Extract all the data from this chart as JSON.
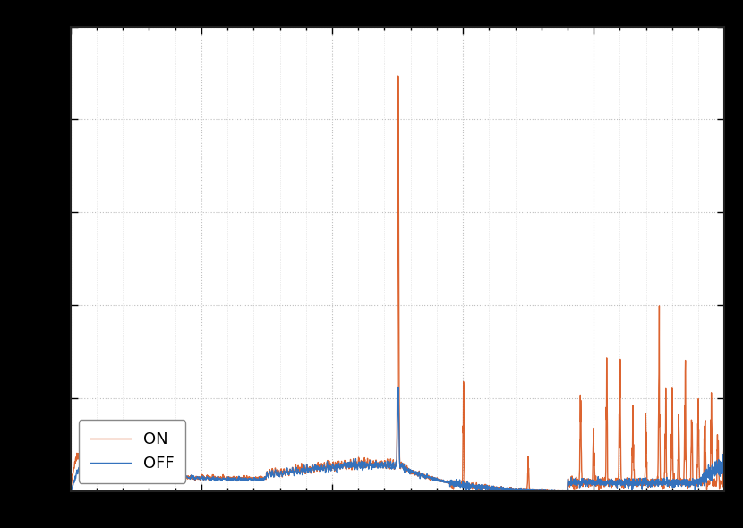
{
  "color_off": "#3472bd",
  "color_on": "#d95319",
  "legend_labels": [
    "OFF",
    "ON"
  ],
  "background_color": "#ffffff",
  "grid_color": "#c0c0c0",
  "fig_facecolor": "#000000",
  "axes_facecolor": "#ffffff",
  "xlim": [
    0,
    500
  ],
  "legend_loc": "lower left",
  "linewidth": 1.0,
  "title": "",
  "xlabel": "",
  "ylabel": ""
}
